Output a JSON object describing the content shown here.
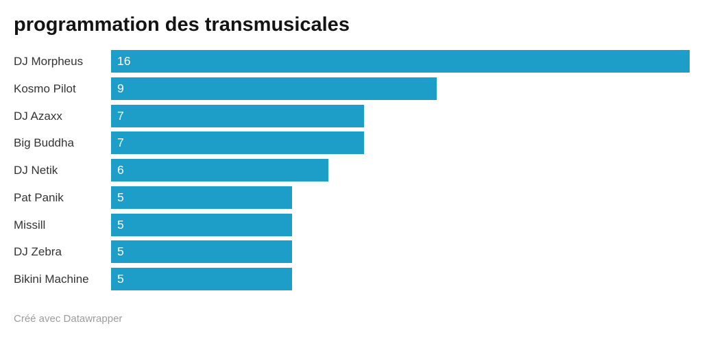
{
  "header": {
    "title": "programmation des transmusicales"
  },
  "chart_data": {
    "type": "bar",
    "orientation": "horizontal",
    "title": "programmation des transmusicales",
    "categories": [
      "DJ Morpheus",
      "Kosmo Pilot",
      "DJ Azaxx",
      "Big Buddha",
      "DJ Netik",
      "Pat Panik",
      "Missill",
      "DJ Zebra",
      "Bikini Machine"
    ],
    "values": [
      16,
      9,
      7,
      7,
      6,
      5,
      5,
      5,
      5
    ],
    "xlabel": "",
    "ylabel": "",
    "xlim": [
      0,
      16
    ],
    "grid": false,
    "legend": false,
    "value_labels_inside_bars": true
  },
  "colors": {
    "bar": "#1d9ec9",
    "title_text": "#141414",
    "category_label": "#333333",
    "value_label": "#ffffff",
    "footer_text": "#9c9c9c",
    "background": "#ffffff"
  },
  "footer": {
    "credit": "Créé avec Datawrapper"
  }
}
